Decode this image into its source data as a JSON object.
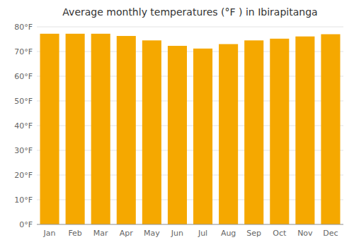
{
  "chart_data": {
    "type": "bar",
    "title": "Average monthly temperatures (°F ) in Ibirapitanga",
    "categories": [
      "Jan",
      "Feb",
      "Mar",
      "Apr",
      "May",
      "Jun",
      "Jul",
      "Aug",
      "Sep",
      "Oct",
      "Nov",
      "Dec"
    ],
    "values": [
      77.2,
      77.2,
      77.2,
      76.3,
      74.5,
      72.3,
      71.2,
      73.0,
      74.5,
      75.2,
      76.1,
      77.0
    ],
    "color": "#F5A800",
    "ylim": [
      0,
      80
    ],
    "yticks": [
      {
        "value": 0,
        "label": "0°F"
      },
      {
        "value": 10,
        "label": "10°F"
      },
      {
        "value": 20,
        "label": "20°F"
      },
      {
        "value": 30,
        "label": "30°F"
      },
      {
        "value": 40,
        "label": "40°F"
      },
      {
        "value": 50,
        "label": "50°F"
      },
      {
        "value": 60,
        "label": "60°F"
      },
      {
        "value": 70,
        "label": "70°F"
      },
      {
        "value": 80,
        "label": "80°F"
      }
    ],
    "grid": true
  }
}
